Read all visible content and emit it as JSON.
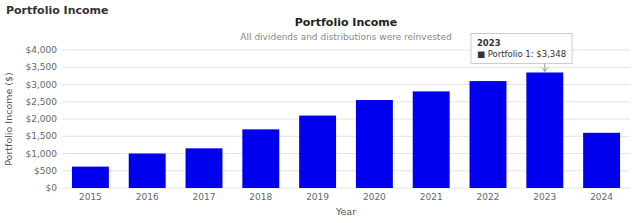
{
  "chart_data": {
    "type": "bar",
    "title": "Portfolio Income",
    "subtitle": "All dividends and distributions were reinvested",
    "header": "Portfolio Income",
    "x_label": "Year",
    "y_label": "Portfolio Income ($)",
    "categories": [
      "2015",
      "2016",
      "2017",
      "2018",
      "2019",
      "2020",
      "2021",
      "2022",
      "2023",
      "2024"
    ],
    "values": [
      620,
      1000,
      1150,
      1700,
      2100,
      2550,
      2800,
      3100,
      3348,
      1600
    ],
    "color": "#0000ee",
    "ylim": [
      0,
      4000
    ],
    "yticks": [
      {
        "value": 0,
        "label": "$0"
      },
      {
        "value": 500,
        "label": "$500"
      },
      {
        "value": 1000,
        "label": "$1,000"
      },
      {
        "value": 1500,
        "label": "$1,500"
      },
      {
        "value": 2000,
        "label": "$2,000"
      },
      {
        "value": 2500,
        "label": "$2,500"
      },
      {
        "value": 3000,
        "label": "$3,000"
      },
      {
        "value": 3500,
        "label": "$3,500"
      },
      {
        "value": 4000,
        "label": "$4,000"
      }
    ],
    "grid": true,
    "annotations": [
      {
        "x": "2023",
        "value": 3348,
        "lines": [
          "2023",
          "■ Portfolio 1: $3,348"
        ]
      }
    ]
  }
}
